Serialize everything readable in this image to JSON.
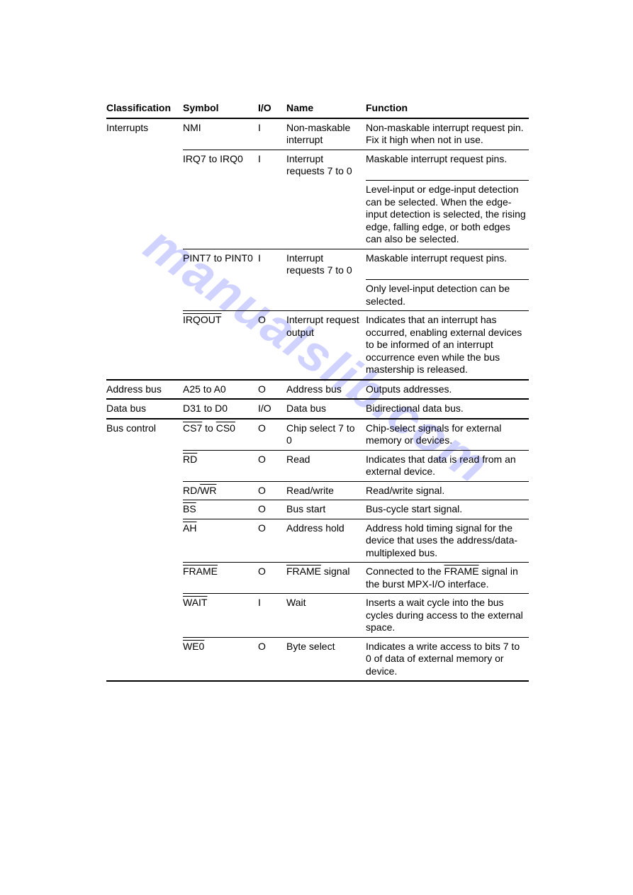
{
  "watermark_text": "manualslib.com",
  "headers": {
    "classification": "Classification",
    "symbol": "Symbol",
    "io": "I/O",
    "name": "Name",
    "function": "Function"
  },
  "rows": [
    {
      "classification": "Interrupts",
      "symbol_parts": [
        {
          "t": "NMI",
          "ov": false
        }
      ],
      "io": "I",
      "name": "Non-maskable interrupt",
      "function": "Non-maskable interrupt request pin. Fix it high when not in use.",
      "new_group": true
    },
    {
      "classification": "",
      "symbol_parts": [
        {
          "t": "IRQ7 to IRQ0",
          "ov": false
        }
      ],
      "io": "I",
      "name": "Interrupt requests 7 to 0",
      "function": "Maskable interrupt request pins.",
      "new_row": true
    },
    {
      "classification": "",
      "symbol_parts": [],
      "io": "",
      "name": "",
      "function": "Level-input or edge-input detection can be selected. When the edge-input detection is selected, the rising edge, falling edge, or both edges can also be selected.",
      "func_only": true
    },
    {
      "classification": "",
      "symbol_parts": [
        {
          "t": "PINT7 to PINT0",
          "ov": false
        }
      ],
      "io": "I",
      "name": "Interrupt requests 7 to 0",
      "function": "Maskable interrupt request pins.",
      "new_row": true
    },
    {
      "classification": "",
      "symbol_parts": [],
      "io": "",
      "name": "",
      "function": "Only level-input detection can be selected.",
      "func_only": true
    },
    {
      "classification": "",
      "symbol_parts": [
        {
          "t": "IRQOUT",
          "ov": true
        }
      ],
      "io": "O",
      "name": "Interrupt request output",
      "function": "Indicates that an interrupt has occurred, enabling external devices to be informed of an interrupt occurrence even while the bus mastership is released.",
      "new_row": true
    },
    {
      "classification": "Address bus",
      "symbol_parts": [
        {
          "t": "A25 to A0",
          "ov": false
        }
      ],
      "io": "O",
      "name": "Address bus",
      "function": "Outputs addresses.",
      "new_group": true
    },
    {
      "classification": "Data bus",
      "symbol_parts": [
        {
          "t": "D31 to D0",
          "ov": false
        }
      ],
      "io": "I/O",
      "name": "Data bus",
      "function": "Bidirectional data bus.",
      "new_group": true
    },
    {
      "classification": "Bus control",
      "symbol_parts": [
        {
          "t": "CS7",
          "ov": true
        },
        {
          "t": " to ",
          "ov": false
        },
        {
          "t": "CS0",
          "ov": true
        }
      ],
      "io": "O",
      "name": "Chip select 7 to 0",
      "function": "Chip-select signals for external memory or devices.",
      "new_group": true
    },
    {
      "classification": "",
      "symbol_parts": [
        {
          "t": "RD",
          "ov": true
        }
      ],
      "io": "O",
      "name": "Read",
      "function": "Indicates that data is read from an external device.",
      "new_row": true
    },
    {
      "classification": "",
      "symbol_parts": [
        {
          "t": "RD/",
          "ov": false
        },
        {
          "t": "WR",
          "ov": true
        }
      ],
      "io": "O",
      "name": "Read/write",
      "function": "Read/write signal.",
      "new_row": true
    },
    {
      "classification": "",
      "symbol_parts": [
        {
          "t": "BS",
          "ov": true
        }
      ],
      "io": "O",
      "name": "Bus start",
      "function": "Bus-cycle start signal.",
      "new_row": true
    },
    {
      "classification": "",
      "symbol_parts": [
        {
          "t": "AH",
          "ov": true
        }
      ],
      "io": "O",
      "name": "Address hold",
      "function": "Address hold timing signal for the device that uses the address/data-multiplexed bus.",
      "new_row": true
    },
    {
      "classification": "",
      "symbol_parts": [
        {
          "t": "FRAME",
          "ov": true
        }
      ],
      "io": "O",
      "name_parts": [
        {
          "t": "FRAME",
          "ov": true
        },
        {
          "t": " signal",
          "ov": false
        }
      ],
      "function_parts": [
        {
          "t": "Connected to the ",
          "ov": false
        },
        {
          "t": "FRAME",
          "ov": true
        },
        {
          "t": " signal in the burst MPX-I/O interface.",
          "ov": false
        }
      ],
      "new_row": true
    },
    {
      "classification": "",
      "symbol_parts": [
        {
          "t": "WAIT",
          "ov": true
        }
      ],
      "io": "I",
      "name": "Wait",
      "function": "Inserts a wait cycle into the bus cycles during access to the external space.",
      "new_row": true
    },
    {
      "classification": "",
      "symbol_parts": [
        {
          "t": "WE0",
          "ov": true
        }
      ],
      "io": "O",
      "name": "Byte select",
      "function": "Indicates a write access to bits 7 to 0 of data of external memory or device.",
      "new_row": true,
      "last": true
    }
  ]
}
